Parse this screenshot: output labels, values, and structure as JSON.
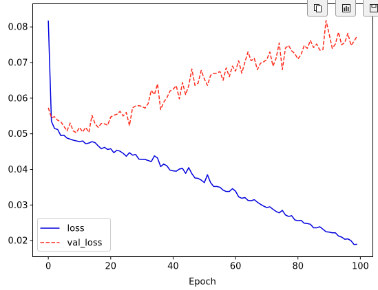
{
  "toolbar": {
    "buttons": [
      {
        "name": "copy-button",
        "icon": "copy-icon"
      },
      {
        "name": "chart-button",
        "icon": "bar-chart-icon"
      },
      {
        "name": "save-button",
        "icon": "save-icon"
      }
    ]
  },
  "chart_data": {
    "type": "line",
    "title": "",
    "xlabel": "Epoch",
    "ylabel": "",
    "xlim": [
      -5,
      104
    ],
    "ylim": [
      0.0155,
      0.0865
    ],
    "x_ticks": [
      0,
      20,
      40,
      60,
      80,
      100
    ],
    "y_ticks": [
      0.02,
      0.03,
      0.04,
      0.05,
      0.06,
      0.07,
      0.08
    ],
    "grid": false,
    "legend_position": "lower-left",
    "x": [
      0,
      1,
      2,
      3,
      4,
      5,
      6,
      7,
      8,
      9,
      10,
      11,
      12,
      13,
      14,
      15,
      16,
      17,
      18,
      19,
      20,
      21,
      22,
      23,
      24,
      25,
      26,
      27,
      28,
      29,
      30,
      31,
      32,
      33,
      34,
      35,
      36,
      37,
      38,
      39,
      40,
      41,
      42,
      43,
      44,
      45,
      46,
      47,
      48,
      49,
      50,
      51,
      52,
      53,
      54,
      55,
      56,
      57,
      58,
      59,
      60,
      61,
      62,
      63,
      64,
      65,
      66,
      67,
      68,
      69,
      70,
      71,
      72,
      73,
      74,
      75,
      76,
      77,
      78,
      79,
      80,
      81,
      82,
      83,
      84,
      85,
      86,
      87,
      88,
      89,
      90,
      91,
      92,
      93,
      94,
      95,
      96,
      97,
      98,
      99
    ],
    "series": [
      {
        "name": "loss",
        "color": "#0000dd",
        "style": "solid",
        "values": [
          0.0818,
          0.0535,
          0.0515,
          0.0512,
          0.0495,
          0.0496,
          0.0488,
          0.0485,
          0.0482,
          0.048,
          0.0478,
          0.048,
          0.0472,
          0.0474,
          0.0478,
          0.0475,
          0.0466,
          0.0458,
          0.0462,
          0.0456,
          0.0458,
          0.0447,
          0.0454,
          0.0451,
          0.0445,
          0.0437,
          0.0447,
          0.044,
          0.0442,
          0.0429,
          0.0428,
          0.0428,
          0.0425,
          0.0422,
          0.0438,
          0.0432,
          0.0408,
          0.0415,
          0.041,
          0.0398,
          0.0396,
          0.0395,
          0.0401,
          0.0403,
          0.0389,
          0.0405,
          0.0388,
          0.0376,
          0.0375,
          0.037,
          0.0363,
          0.0385,
          0.0363,
          0.0352,
          0.0352,
          0.035,
          0.0342,
          0.0338,
          0.0338,
          0.0346,
          0.0339,
          0.0323,
          0.0319,
          0.0321,
          0.0313,
          0.0312,
          0.0315,
          0.0308,
          0.0302,
          0.0297,
          0.0293,
          0.0295,
          0.0288,
          0.0282,
          0.0278,
          0.0285,
          0.0272,
          0.0268,
          0.027,
          0.0258,
          0.0256,
          0.0257,
          0.0249,
          0.0248,
          0.0246,
          0.0236,
          0.0236,
          0.0239,
          0.0232,
          0.0225,
          0.0224,
          0.0222,
          0.0222,
          0.0213,
          0.021,
          0.0204,
          0.0205,
          0.02,
          0.0189,
          0.019
        ]
      },
      {
        "name": "val_loss",
        "color": "#ff2a1a",
        "style": "dashed",
        "values": [
          0.0573,
          0.0545,
          0.0548,
          0.0538,
          0.0534,
          0.0521,
          0.0508,
          0.053,
          0.0508,
          0.0503,
          0.0518,
          0.0505,
          0.0518,
          0.0504,
          0.0552,
          0.0528,
          0.0518,
          0.0529,
          0.0528,
          0.0524,
          0.0547,
          0.0552,
          0.0555,
          0.0563,
          0.055,
          0.056,
          0.0523,
          0.0573,
          0.0578,
          0.0579,
          0.0577,
          0.0572,
          0.0585,
          0.0622,
          0.061,
          0.064,
          0.0568,
          0.0589,
          0.0601,
          0.062,
          0.0625,
          0.0635,
          0.0598,
          0.0644,
          0.061,
          0.0635,
          0.0682,
          0.0636,
          0.0642,
          0.0678,
          0.0654,
          0.0636,
          0.0664,
          0.067,
          0.067,
          0.0675,
          0.065,
          0.0685,
          0.066,
          0.069,
          0.0676,
          0.0705,
          0.067,
          0.0701,
          0.073,
          0.0705,
          0.0712,
          0.068,
          0.0698,
          0.0702,
          0.0708,
          0.073,
          0.069,
          0.0712,
          0.0755,
          0.068,
          0.0741,
          0.0748,
          0.0733,
          0.0725,
          0.071,
          0.0722,
          0.0748,
          0.074,
          0.0762,
          0.0742,
          0.0752,
          0.0735,
          0.0736,
          0.0818,
          0.078,
          0.074,
          0.0752,
          0.0785,
          0.075,
          0.0756,
          0.0782,
          0.0748,
          0.076,
          0.0775
        ]
      }
    ]
  }
}
